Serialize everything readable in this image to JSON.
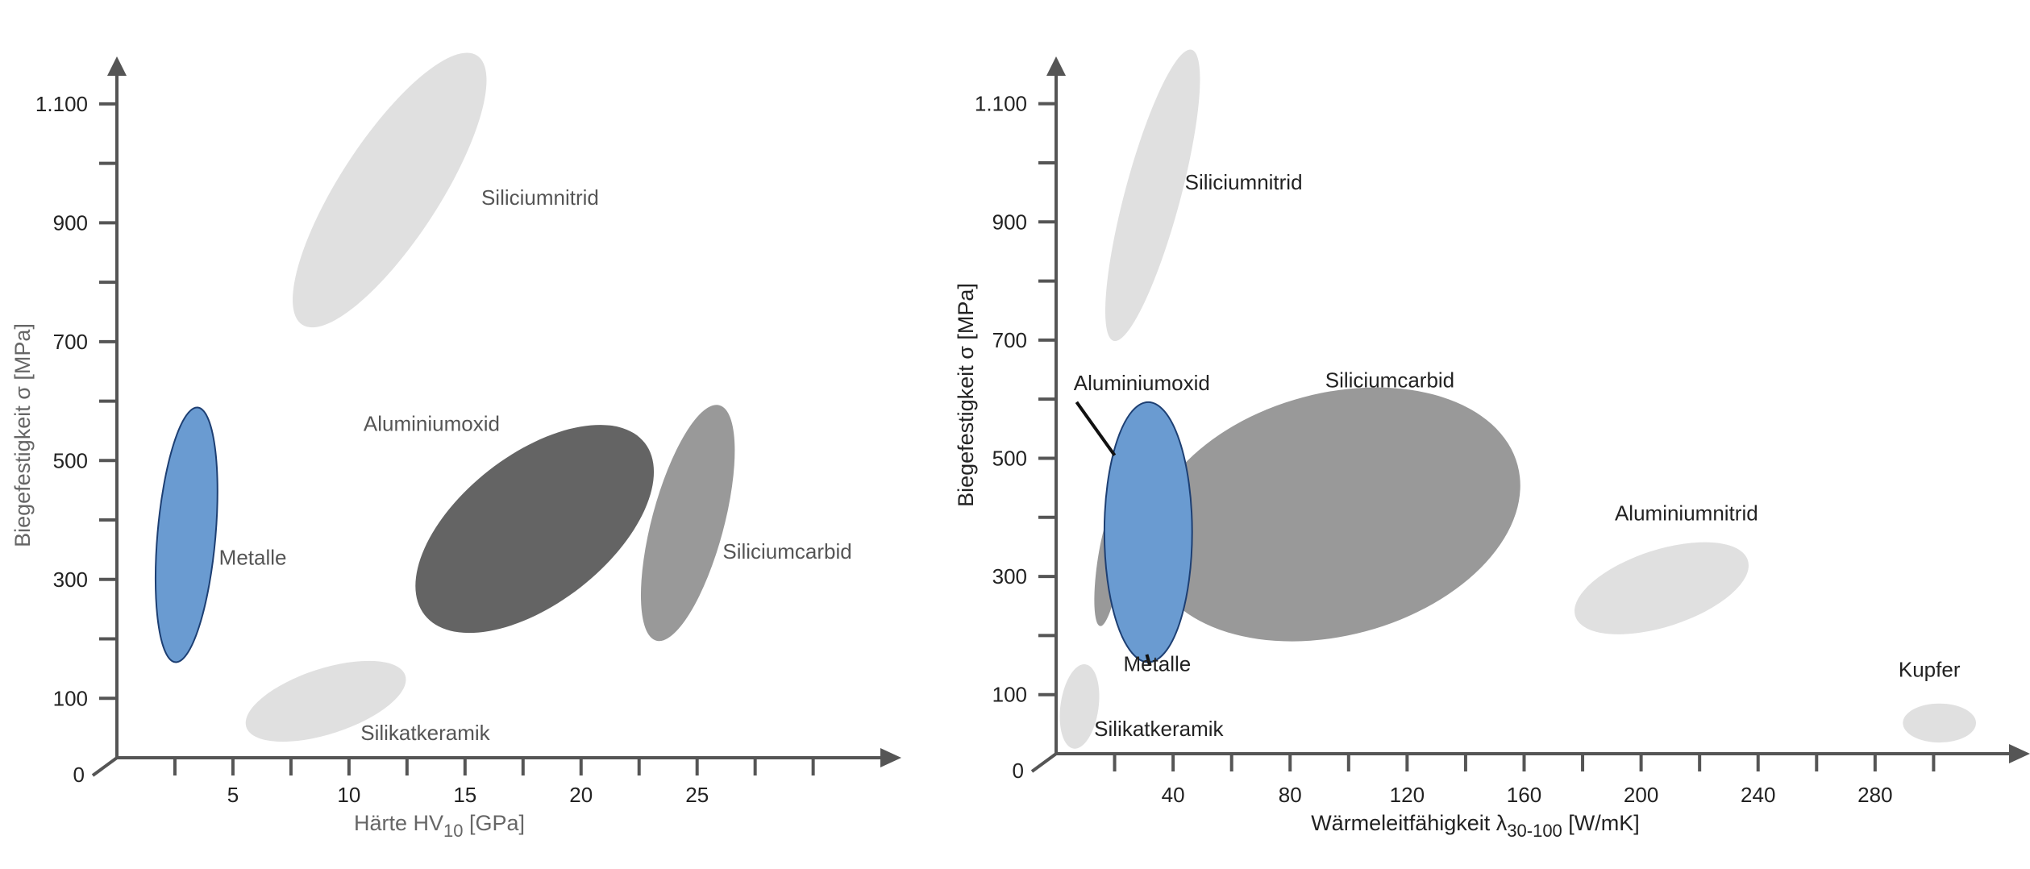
{
  "chart_data": [
    {
      "type": "scatter",
      "title": "",
      "xlabel": "Härte HV",
      "xlabel_sub": "10",
      "xlabel_unit": " [GPa]",
      "ylabel": "Biegefestigkeit σ [MPa]",
      "origin_label": "0",
      "xlim": [
        0,
        33
      ],
      "ylim": [
        0,
        1150
      ],
      "x_ticks": [
        2.5,
        5,
        7.5,
        10,
        12.5,
        15,
        17.5,
        20,
        22.5,
        25,
        27.5,
        30
      ],
      "x_tick_labels": [
        {
          "value": 5,
          "label": "5"
        },
        {
          "value": 10,
          "label": "10"
        },
        {
          "value": 15,
          "label": "15"
        },
        {
          "value": 20,
          "label": "20"
        },
        {
          "value": 25,
          "label": "25"
        }
      ],
      "y_ticks": [
        100,
        200,
        300,
        400,
        500,
        600,
        700,
        800,
        900,
        1000,
        1100
      ],
      "y_tick_labels": [
        {
          "value": 100,
          "label": "100"
        },
        {
          "value": 300,
          "label": "300"
        },
        {
          "value": 500,
          "label": "500"
        },
        {
          "value": 700,
          "label": "700"
        },
        {
          "value": 900,
          "label": "900"
        },
        {
          "value": 1100,
          "label": "1.100"
        }
      ],
      "regions": [
        {
          "name": "Siliciumnitrid",
          "cx": 11.75,
          "cy": 955,
          "rx": 2.15,
          "ry": 270,
          "rotate": 33,
          "color": "#e0e0e0",
          "label_x": 15.7,
          "label_y": 930,
          "label_anchor": "start",
          "label_color": "#555555"
        },
        {
          "name": "Metalle",
          "cx": 3.0,
          "cy": 375,
          "rx": 1.25,
          "ry": 215,
          "rotate": 5,
          "color": "#6a9bd1",
          "stroke": "#1d3f73",
          "label_x": 4.4,
          "label_y": 325,
          "label_anchor": "start",
          "label_color": "#555555"
        },
        {
          "name": "Aluminiumoxid",
          "cx": 18.0,
          "cy": 385,
          "rx": 3.2,
          "ry": 235,
          "rotate": 52,
          "color": "#646464",
          "label_x": 16.5,
          "label_y": 550,
          "label_anchor": "end",
          "label_color": "#555555"
        },
        {
          "name": "Siliciumcarbid",
          "cx": 24.6,
          "cy": 395,
          "rx": 1.55,
          "ry": 205,
          "rotate": 15,
          "color": "#999999",
          "label_x": 26.1,
          "label_y": 335,
          "label_anchor": "start",
          "label_color": "#555555"
        },
        {
          "name": "Silikatkeramik",
          "cx": 9.0,
          "cy": 95,
          "rx": 3.6,
          "ry": 55,
          "rotate": -18,
          "color": "#e0e0e0",
          "label_x": 10.5,
          "label_y": 30,
          "label_anchor": "start",
          "label_color": "#555555"
        }
      ]
    },
    {
      "type": "scatter",
      "title": "",
      "xlabel": "Wärmeleitfähigkeit λ",
      "xlabel_sub": "30-100",
      "xlabel_unit": " [W/mK]",
      "ylabel": "Biegefestigkeit σ [MPa]",
      "origin_label": "0",
      "xlim": [
        0,
        328
      ],
      "ylim": [
        0,
        1150
      ],
      "x_ticks": [
        20,
        40,
        60,
        80,
        100,
        120,
        140,
        160,
        180,
        200,
        220,
        240,
        260,
        280,
        300
      ],
      "x_tick_labels": [
        {
          "value": 40,
          "label": "40"
        },
        {
          "value": 80,
          "label": "80"
        },
        {
          "value": 120,
          "label": "120"
        },
        {
          "value": 160,
          "label": "160"
        },
        {
          "value": 200,
          "label": "200"
        },
        {
          "value": 240,
          "label": "240"
        },
        {
          "value": 280,
          "label": "280"
        }
      ],
      "y_ticks": [
        100,
        200,
        300,
        400,
        500,
        600,
        700,
        800,
        900,
        1000,
        1100
      ],
      "y_tick_labels": [
        {
          "value": 100,
          "label": "100"
        },
        {
          "value": 300,
          "label": "300"
        },
        {
          "value": 500,
          "label": "500"
        },
        {
          "value": 700,
          "label": "700"
        },
        {
          "value": 900,
          "label": "900"
        },
        {
          "value": 1100,
          "label": "1.100"
        }
      ],
      "regions": [
        {
          "name": "Siliciumnitrid",
          "cx": 33,
          "cy": 945,
          "rx": 9.5,
          "ry": 255,
          "rotate": 15,
          "color": "#e0e0e0",
          "label_x": 44,
          "label_y": 955,
          "label_anchor": "start",
          "label_color": "#222222"
        },
        {
          "name": "Siliciumcarbid",
          "cx": 95,
          "cy": 405,
          "rx": 65,
          "ry": 205,
          "rotate": -15,
          "color": "#999999",
          "label_x": 92,
          "label_y": 620,
          "label_anchor": "start",
          "label_color": "#222222"
        },
        {
          "name": "Aluminiumnitrid",
          "cx": 207,
          "cy": 280,
          "rx": 31,
          "ry": 65,
          "rotate": -18,
          "color": "#e0e0e0",
          "label_x": 191,
          "label_y": 395,
          "label_anchor": "start",
          "label_color": "#222222"
        },
        {
          "name": "Kupfer",
          "cx": 302,
          "cy": 52,
          "rx": 12.5,
          "ry": 33,
          "rotate": 0,
          "color": "#e0e0e0",
          "label_x": 288,
          "label_y": 130,
          "label_anchor": "start",
          "label_color": "#222222"
        },
        {
          "name": "Silikatkeramik",
          "cx": 8,
          "cy": 80,
          "rx": 6.5,
          "ry": 72,
          "rotate": 8,
          "color": "#e0e0e0",
          "label_x": 13,
          "label_y": 30,
          "label_anchor": "start",
          "label_color": "#222222"
        },
        {
          "name": "Aluminiumoxid",
          "cx": 18,
          "cy": 320,
          "rx": 4,
          "ry": 105,
          "rotate": 8,
          "color": "#999999",
          "label_x": 6,
          "label_y": 615,
          "label_anchor": "start",
          "label_color": "#222222",
          "pointer": true,
          "pointer_from": [
            7,
            595
          ],
          "pointer_to": [
            20,
            505
          ]
        },
        {
          "name": "Metalle",
          "cx": 31.5,
          "cy": 375,
          "rx": 15,
          "ry": 220,
          "rotate": 0,
          "color": "#6a9bd1",
          "stroke": "#1d3f73",
          "label_x": 23,
          "label_y": 140,
          "label_anchor": "start",
          "label_color": "#222222",
          "pointer": true,
          "pointer_from": [
            32,
            150
          ],
          "pointer_to": [
            31,
            168
          ]
        }
      ]
    }
  ]
}
